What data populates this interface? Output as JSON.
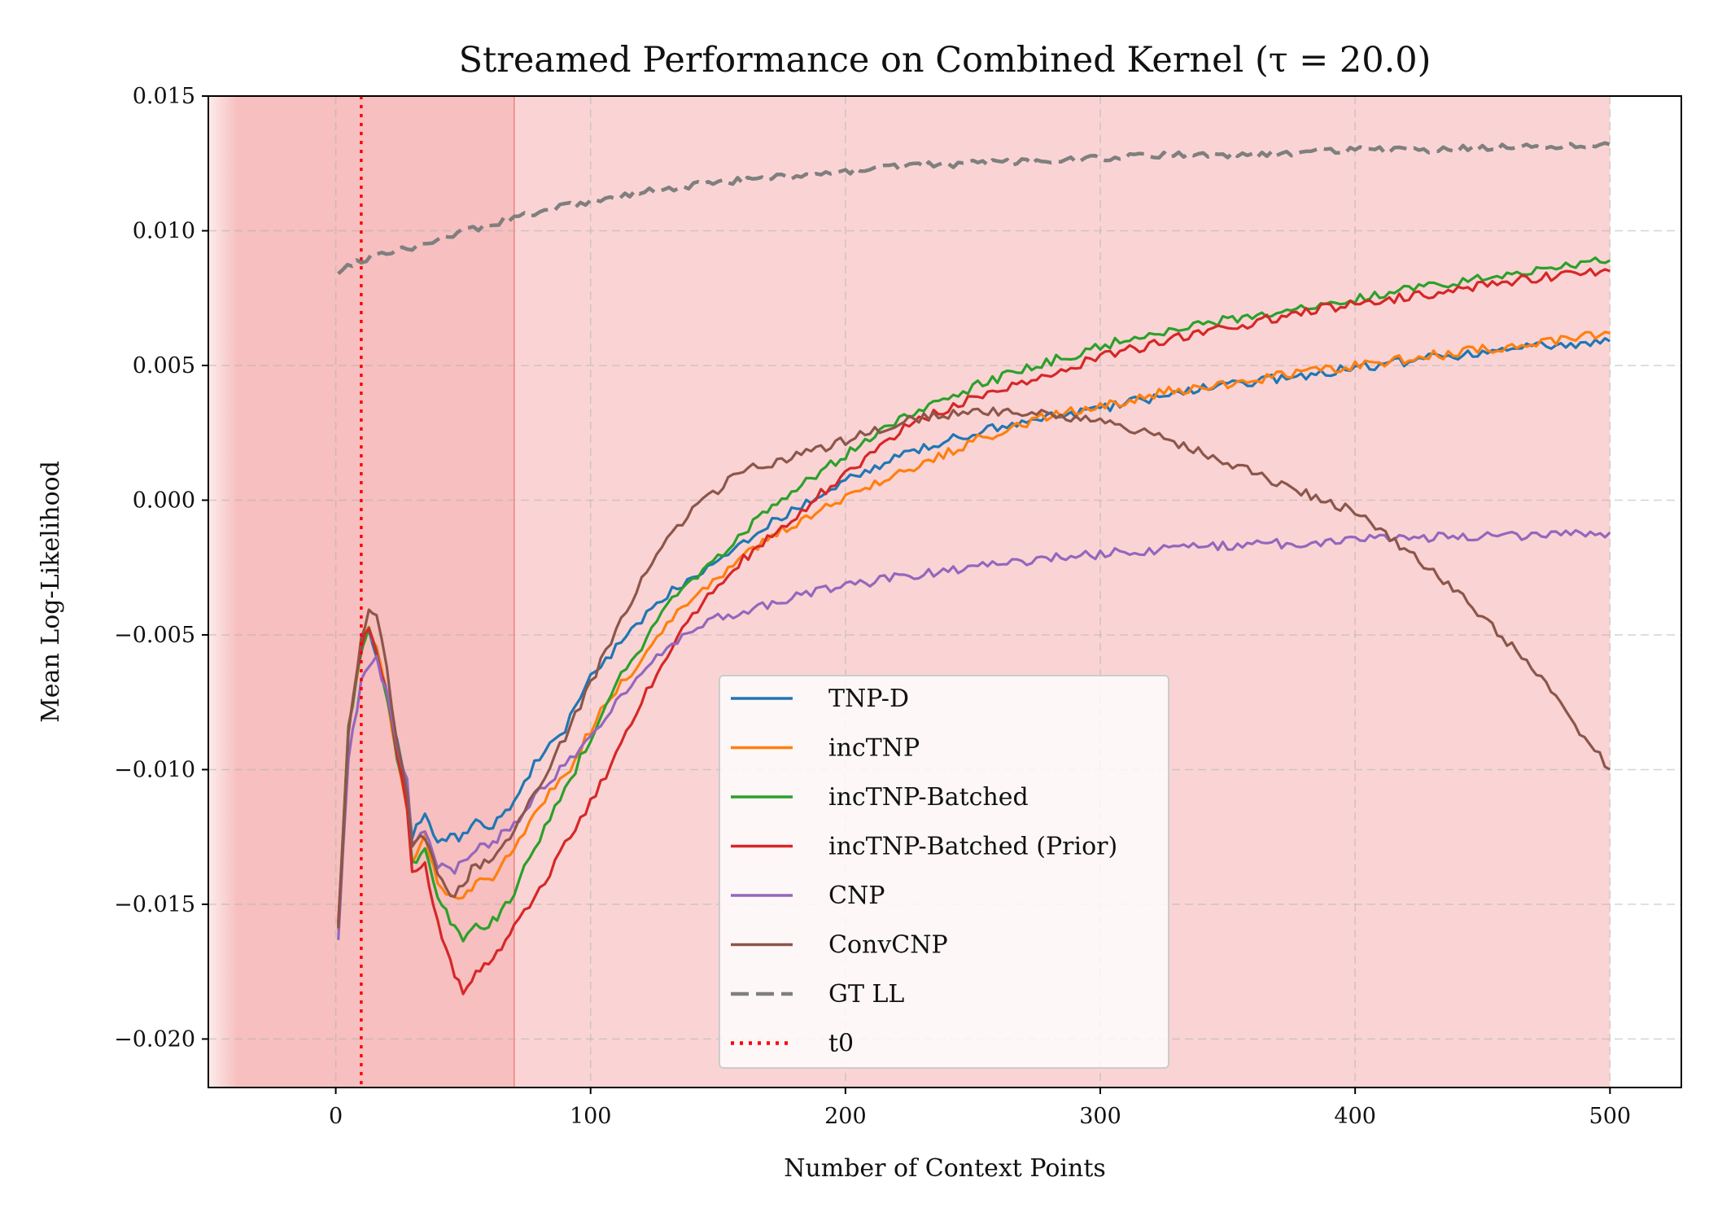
{
  "chart_data": {
    "type": "line",
    "title": "Streamed Performance on Combined Kernel (τ = 20.0)",
    "xlabel": "Number of Context Points",
    "ylabel": "Mean Log-Likelihood",
    "xlim": [
      -50,
      528
    ],
    "ylim": [
      -0.0218,
      0.015
    ],
    "xticks": [
      0,
      100,
      200,
      300,
      400,
      500
    ],
    "xtick_labels": [
      "0",
      "100",
      "200",
      "300",
      "400",
      "500"
    ],
    "yticks": [
      0.015,
      0.01,
      0.005,
      0.0,
      -0.005,
      -0.01,
      -0.015,
      -0.02
    ],
    "ytick_labels": [
      "0.015",
      "0.010",
      "0.005",
      "0.000",
      "−0.005",
      "−0.010",
      "−0.015",
      "−0.020"
    ],
    "grid": true,
    "legend_position": "lower-center",
    "shaded_regions": [
      {
        "x_range": [
          -50,
          70
        ],
        "color": "#f08080",
        "opacity": 0.5
      },
      {
        "x_range": [
          70,
          500
        ],
        "color": "#f5a0a0",
        "opacity": 0.45
      }
    ],
    "series": [
      {
        "name": "TNP-D",
        "color": "#1f77b4",
        "style": "solid",
        "x": [
          1,
          5,
          10,
          13,
          16,
          20,
          24,
          28,
          30,
          35,
          40,
          45,
          50,
          55,
          60,
          65,
          70,
          80,
          90,
          100,
          110,
          120,
          130,
          140,
          150,
          160,
          175,
          200,
          225,
          250,
          275,
          300,
          325,
          350,
          375,
          400,
          425,
          450,
          475,
          500
        ],
        "y": [
          -0.0158,
          -0.0085,
          -0.0055,
          -0.0048,
          -0.0058,
          -0.0072,
          -0.009,
          -0.0108,
          -0.0125,
          -0.0115,
          -0.0128,
          -0.0125,
          -0.0125,
          -0.012,
          -0.0122,
          -0.0118,
          -0.0112,
          -0.0095,
          -0.0085,
          -0.0065,
          -0.0055,
          -0.0045,
          -0.0035,
          -0.0028,
          -0.0022,
          -0.0015,
          -0.0006,
          0.0007,
          0.0018,
          0.0025,
          0.003,
          0.0034,
          0.0039,
          0.0043,
          0.0046,
          0.0049,
          0.0052,
          0.0055,
          0.0057,
          0.0059
        ]
      },
      {
        "name": "incTNP",
        "color": "#ff7f0e",
        "style": "solid",
        "x": [
          1,
          5,
          10,
          13,
          16,
          20,
          24,
          28,
          30,
          35,
          40,
          45,
          50,
          55,
          60,
          65,
          70,
          80,
          90,
          100,
          110,
          120,
          130,
          140,
          150,
          160,
          175,
          200,
          225,
          250,
          275,
          300,
          325,
          350,
          375,
          400,
          425,
          450,
          475,
          500
        ],
        "y": [
          -0.0158,
          -0.0085,
          -0.0055,
          -0.0046,
          -0.0056,
          -0.0072,
          -0.0095,
          -0.0115,
          -0.0133,
          -0.0125,
          -0.0142,
          -0.0148,
          -0.0148,
          -0.0142,
          -0.0142,
          -0.0136,
          -0.013,
          -0.0113,
          -0.0103,
          -0.0085,
          -0.007,
          -0.006,
          -0.0045,
          -0.0036,
          -0.0029,
          -0.0021,
          -0.0011,
          0.0001,
          0.0011,
          0.0022,
          0.003,
          0.0035,
          0.004,
          0.0043,
          0.0047,
          0.005,
          0.0053,
          0.0056,
          0.0059,
          0.0062
        ]
      },
      {
        "name": "incTNP-Batched",
        "color": "#2ca02c",
        "style": "solid",
        "x": [
          1,
          5,
          10,
          13,
          16,
          20,
          24,
          28,
          30,
          35,
          40,
          45,
          50,
          55,
          60,
          65,
          70,
          80,
          90,
          100,
          110,
          120,
          130,
          140,
          150,
          160,
          175,
          200,
          225,
          250,
          275,
          300,
          325,
          350,
          375,
          400,
          425,
          450,
          475,
          500
        ],
        "y": [
          -0.0158,
          -0.0085,
          -0.0055,
          -0.0046,
          -0.0056,
          -0.0072,
          -0.0095,
          -0.0115,
          -0.0135,
          -0.013,
          -0.0147,
          -0.0157,
          -0.0163,
          -0.0158,
          -0.0158,
          -0.0153,
          -0.0145,
          -0.0125,
          -0.0108,
          -0.0088,
          -0.0068,
          -0.0055,
          -0.0039,
          -0.003,
          -0.0022,
          -0.0012,
          0.0001,
          0.0017,
          0.0032,
          0.0042,
          0.005,
          0.0057,
          0.0063,
          0.0067,
          0.0071,
          0.0075,
          0.0079,
          0.0082,
          0.0086,
          0.0089
        ]
      },
      {
        "name": "incTNP-Batched (Prior)",
        "color": "#d62728",
        "style": "solid",
        "x": [
          1,
          5,
          10,
          13,
          16,
          20,
          24,
          28,
          30,
          35,
          40,
          45,
          50,
          55,
          60,
          65,
          70,
          80,
          90,
          100,
          110,
          120,
          130,
          140,
          150,
          160,
          175,
          200,
          225,
          250,
          275,
          300,
          325,
          350,
          375,
          400,
          425,
          450,
          475,
          500
        ],
        "y": [
          -0.0158,
          -0.0085,
          -0.0055,
          -0.0046,
          -0.0056,
          -0.0072,
          -0.0095,
          -0.0115,
          -0.0137,
          -0.0135,
          -0.0157,
          -0.0172,
          -0.0182,
          -0.0175,
          -0.0172,
          -0.0167,
          -0.0158,
          -0.0145,
          -0.0128,
          -0.0112,
          -0.0095,
          -0.0075,
          -0.0057,
          -0.0042,
          -0.0032,
          -0.0022,
          -0.001,
          0.001,
          0.0028,
          0.0038,
          0.0046,
          0.0053,
          0.0059,
          0.0064,
          0.0069,
          0.0073,
          0.0076,
          0.008,
          0.0083,
          0.0085
        ]
      },
      {
        "name": "CNP",
        "color": "#9467bd",
        "style": "solid",
        "x": [
          1,
          5,
          10,
          13,
          16,
          20,
          24,
          28,
          30,
          35,
          40,
          45,
          50,
          55,
          60,
          65,
          70,
          80,
          90,
          100,
          110,
          120,
          130,
          140,
          150,
          160,
          175,
          200,
          225,
          250,
          275,
          300,
          325,
          350,
          375,
          400,
          425,
          450,
          475,
          500
        ],
        "y": [
          -0.0162,
          -0.0095,
          -0.0068,
          -0.0062,
          -0.0058,
          -0.0072,
          -0.0092,
          -0.0105,
          -0.0128,
          -0.0122,
          -0.0135,
          -0.0138,
          -0.0135,
          -0.013,
          -0.0128,
          -0.0124,
          -0.012,
          -0.0108,
          -0.0098,
          -0.0088,
          -0.0075,
          -0.0063,
          -0.0055,
          -0.0048,
          -0.0044,
          -0.0041,
          -0.0037,
          -0.0032,
          -0.0028,
          -0.0025,
          -0.0022,
          -0.002,
          -0.0018,
          -0.0017,
          -0.0016,
          -0.0015,
          -0.0014,
          -0.0013,
          -0.0013,
          -0.0012
        ]
      },
      {
        "name": "ConvCNP",
        "color": "#8c564b",
        "style": "solid",
        "x": [
          1,
          5,
          10,
          13,
          16,
          20,
          24,
          28,
          30,
          35,
          40,
          45,
          50,
          55,
          60,
          65,
          70,
          80,
          90,
          100,
          110,
          120,
          130,
          140,
          150,
          160,
          175,
          200,
          225,
          250,
          260,
          275,
          300,
          325,
          350,
          375,
          400,
          410,
          425,
          450,
          475,
          490,
          500
        ],
        "y": [
          -0.016,
          -0.0085,
          -0.0052,
          -0.0042,
          -0.0042,
          -0.0062,
          -0.009,
          -0.011,
          -0.0128,
          -0.0125,
          -0.0138,
          -0.0148,
          -0.0142,
          -0.0135,
          -0.0135,
          -0.013,
          -0.0122,
          -0.0105,
          -0.0088,
          -0.0068,
          -0.0048,
          -0.003,
          -0.0015,
          -0.0003,
          0.0004,
          0.0011,
          0.0015,
          0.0022,
          0.003,
          0.0033,
          0.0033,
          0.0032,
          0.0029,
          0.0023,
          0.0014,
          0.0004,
          -0.0004,
          -0.0012,
          -0.0022,
          -0.0043,
          -0.0068,
          -0.0088,
          -0.01
        ]
      },
      {
        "name": "GT LL",
        "color": "#7f7f7f",
        "style": "dashed",
        "x": [
          1,
          10,
          20,
          30,
          40,
          50,
          60,
          70,
          80,
          90,
          100,
          125,
          150,
          175,
          200,
          225,
          250,
          275,
          300,
          325,
          350,
          375,
          400,
          425,
          450,
          475,
          500
        ],
        "y": [
          0.0085,
          0.0089,
          0.0092,
          0.0094,
          0.0097,
          0.01,
          0.0102,
          0.0105,
          0.0107,
          0.0109,
          0.0111,
          0.0115,
          0.0118,
          0.012,
          0.0122,
          0.0124,
          0.0125,
          0.0126,
          0.0127,
          0.0128,
          0.0128,
          0.0129,
          0.013,
          0.013,
          0.0131,
          0.0131,
          0.0132
        ]
      },
      {
        "name": "t0",
        "color": "#ff0000",
        "style": "dotted",
        "vertical_line_x": 10
      }
    ]
  }
}
